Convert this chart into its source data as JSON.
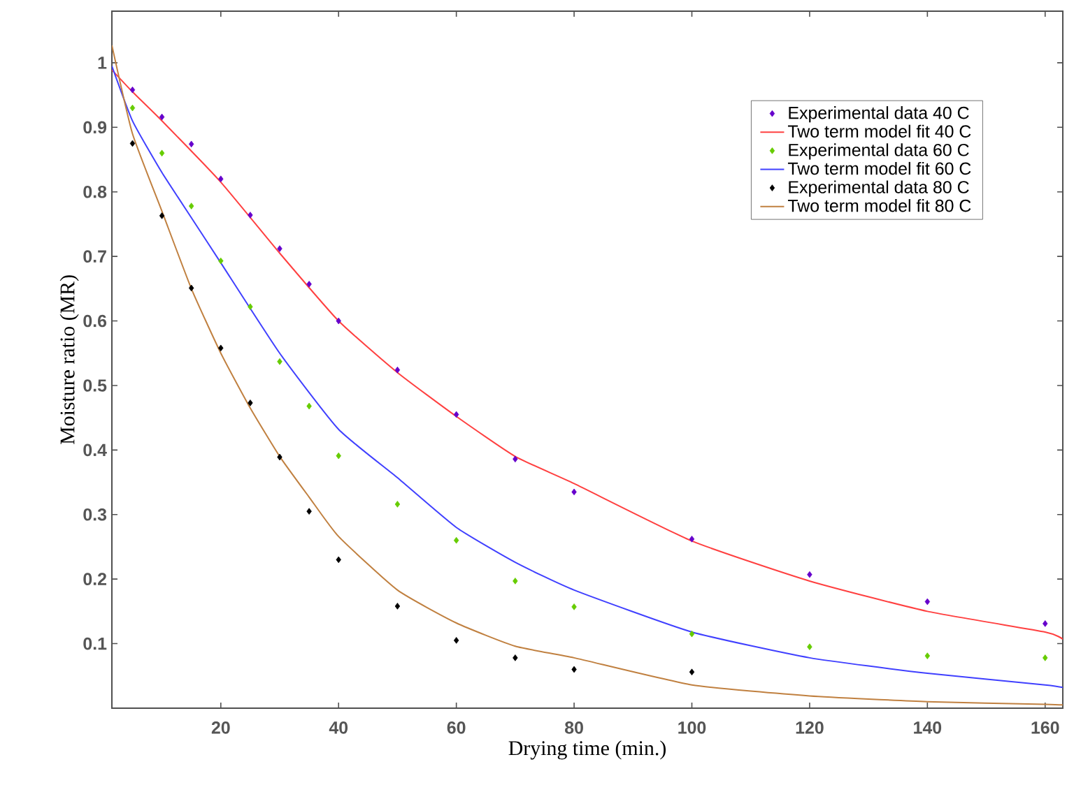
{
  "chart_data": {
    "type": "scatter",
    "xlabel": "Drying time (min.)",
    "ylabel": "Moisture ratio (MR)",
    "xlim": [
      1.5,
      163
    ],
    "ylim": [
      0,
      1.08
    ],
    "xticks": [
      20,
      40,
      60,
      80,
      100,
      120,
      140,
      160
    ],
    "yticks": [
      0.1,
      0.2,
      0.3,
      0.4,
      0.5,
      0.6,
      0.7,
      0.8,
      0.9,
      1
    ],
    "legend": "top right",
    "grid": false,
    "series": [
      {
        "name": "Experimental data 40 C",
        "marker": "diamond",
        "color": "#6600cc",
        "x": [
          5,
          10,
          15,
          20,
          25,
          30,
          35,
          40,
          50,
          60,
          70,
          80,
          100,
          120,
          140,
          160
        ],
        "values": [
          0.958,
          0.916,
          0.874,
          0.82,
          0.764,
          0.712,
          0.657,
          0.6,
          0.524,
          0.455,
          0.386,
          0.335,
          0.262,
          0.207,
          0.165,
          0.131
        ]
      },
      {
        "name": "Two term model fit 40 C",
        "type": "line",
        "marker": "none",
        "color": "#ff4040",
        "x": [
          1.5,
          5,
          10,
          20,
          30,
          40,
          50,
          60,
          70,
          80,
          100,
          120,
          140,
          160,
          163
        ],
        "values": [
          0.989,
          0.955,
          0.91,
          0.815,
          0.705,
          0.6,
          0.52,
          0.452,
          0.39,
          0.348,
          0.259,
          0.197,
          0.15,
          0.118,
          0.107
        ]
      },
      {
        "name": "Experimental data 60 C",
        "marker": "diamond",
        "color": "#66cc00",
        "x": [
          5,
          10,
          15,
          20,
          25,
          30,
          35,
          40,
          50,
          60,
          70,
          80,
          100,
          120,
          140,
          160
        ],
        "values": [
          0.93,
          0.86,
          0.778,
          0.693,
          0.622,
          0.537,
          0.468,
          0.391,
          0.316,
          0.26,
          0.197,
          0.157,
          0.115,
          0.095,
          0.081,
          0.078
        ]
      },
      {
        "name": "Two term model fit 60 C",
        "type": "line",
        "marker": "none",
        "color": "#4040ff",
        "x": [
          1.5,
          5,
          10,
          15,
          20,
          30,
          40,
          50,
          60,
          70,
          80,
          100,
          120,
          140,
          160,
          163
        ],
        "values": [
          0.995,
          0.91,
          0.83,
          0.76,
          0.69,
          0.55,
          0.432,
          0.357,
          0.28,
          0.226,
          0.183,
          0.118,
          0.078,
          0.054,
          0.036,
          0.032
        ]
      },
      {
        "name": "Experimental data 80 C",
        "marker": "diamond",
        "color": "#000000",
        "x": [
          5,
          10,
          15,
          20,
          25,
          30,
          35,
          40,
          50,
          60,
          70,
          80,
          100
        ],
        "values": [
          0.875,
          0.763,
          0.651,
          0.558,
          0.473,
          0.389,
          0.305,
          0.23,
          0.158,
          0.105,
          0.078,
          0.06,
          0.056
        ]
      },
      {
        "name": "Two term model fit 80 C",
        "type": "line",
        "marker": "none",
        "color": "#c08040",
        "x": [
          1.5,
          5,
          10,
          15,
          20,
          25,
          30,
          35,
          40,
          50,
          60,
          70,
          80,
          100,
          120,
          140,
          160,
          163
        ],
        "values": [
          1.027,
          0.89,
          0.77,
          0.65,
          0.55,
          0.465,
          0.39,
          0.327,
          0.266,
          0.183,
          0.132,
          0.096,
          0.078,
          0.036,
          0.019,
          0.01,
          0.006,
          0.005
        ]
      }
    ]
  }
}
